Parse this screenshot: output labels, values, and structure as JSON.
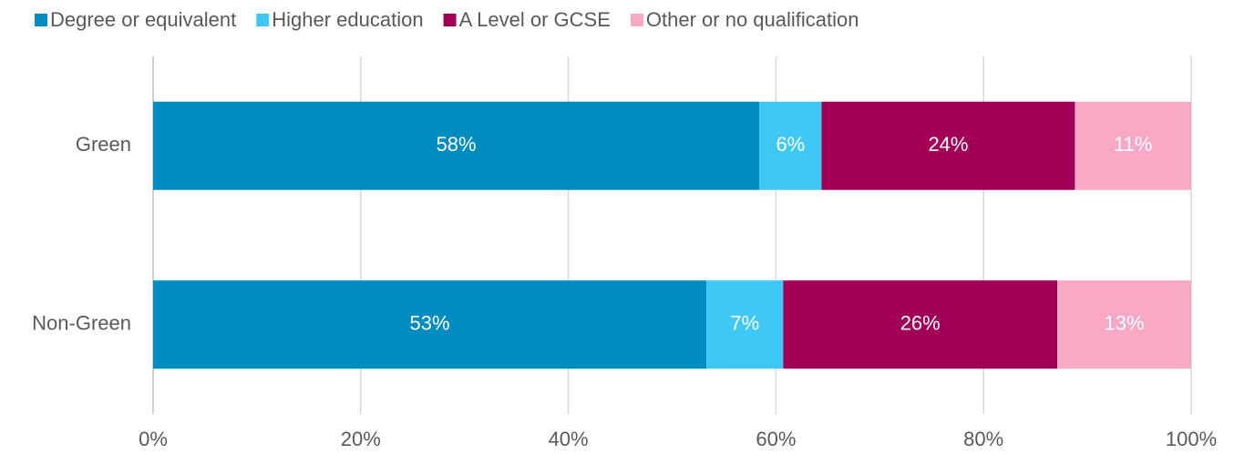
{
  "chart_data": {
    "type": "stacked-barh",
    "categories": [
      "Green",
      "Non-Green"
    ],
    "series": [
      {
        "name": "Degree or equivalent",
        "color": "#008cc1",
        "values": [
          58.4,
          53.3
        ],
        "value_labels": [
          "58%",
          "53%"
        ]
      },
      {
        "name": "Higher education",
        "color": "#40c8f4",
        "values": [
          6.0,
          7.4
        ],
        "value_labels": [
          "6%",
          "7%"
        ]
      },
      {
        "name": "A Level or GCSE",
        "color": "#a10056",
        "values": [
          24.4,
          26.4
        ],
        "value_labels": [
          "24%",
          "26%"
        ]
      },
      {
        "name": "Other or no qualification",
        "color": "#f6a8c4",
        "values": [
          11.2,
          12.9
        ],
        "value_labels": [
          "11%",
          "13%"
        ]
      }
    ],
    "xlim": [
      0,
      100
    ],
    "xticks": [
      {
        "value": 0,
        "label": "0%"
      },
      {
        "value": 20,
        "label": "20%"
      },
      {
        "value": 40,
        "label": "40%"
      },
      {
        "value": 60,
        "label": "60%"
      },
      {
        "value": 80,
        "label": "80%"
      },
      {
        "value": 100,
        "label": "100%"
      }
    ],
    "grid": true,
    "legend": "top"
  }
}
